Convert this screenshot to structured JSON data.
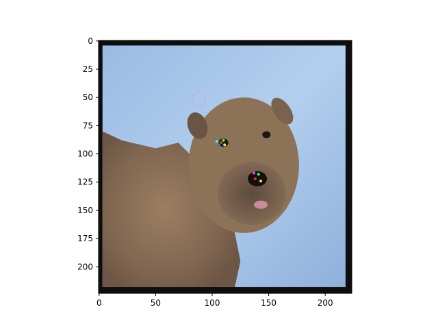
{
  "chart_data": {
    "type": "image",
    "title": "",
    "xlabel": "",
    "ylabel": "",
    "xlim": [
      0,
      224
    ],
    "ylim": [
      224,
      0
    ],
    "x_ticks": [
      0,
      50,
      100,
      150,
      200
    ],
    "y_ticks": [
      0,
      25,
      50,
      75,
      100,
      125,
      150,
      175,
      200
    ],
    "image_content": "photo of a shaggy wheaten terrier dog standing in snow, looking at the camera, tongue slightly out, with small colorful artifact speckles around its eye and nose",
    "grid": false,
    "colors": {
      "snow": "#a9c7ea",
      "snow_shadow": "#7d9cc8",
      "fur": "#8f7458",
      "fur_dark": "#5a4636",
      "border": "#111111"
    }
  }
}
